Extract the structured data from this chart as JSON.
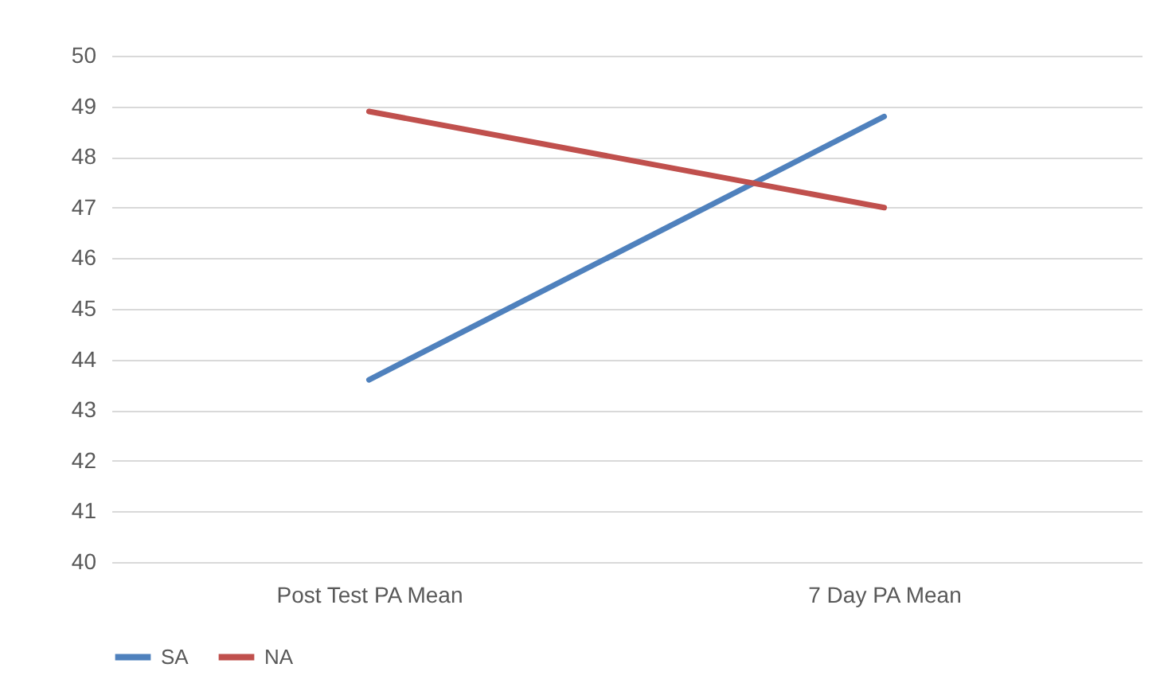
{
  "chart_data": {
    "type": "line",
    "categories": [
      "Post Test PA Mean",
      "7 Day PA Mean"
    ],
    "series": [
      {
        "name": "SA",
        "color": "#4f81bd",
        "values": [
          43.6,
          48.8
        ]
      },
      {
        "name": "NA",
        "color": "#c0504d",
        "values": [
          48.9,
          47.0
        ]
      }
    ],
    "ylim": [
      40,
      50
    ],
    "yticks": [
      40,
      41,
      42,
      43,
      44,
      45,
      46,
      47,
      48,
      49,
      50
    ],
    "grid": "y",
    "legend": "bottom",
    "marker": "none"
  }
}
